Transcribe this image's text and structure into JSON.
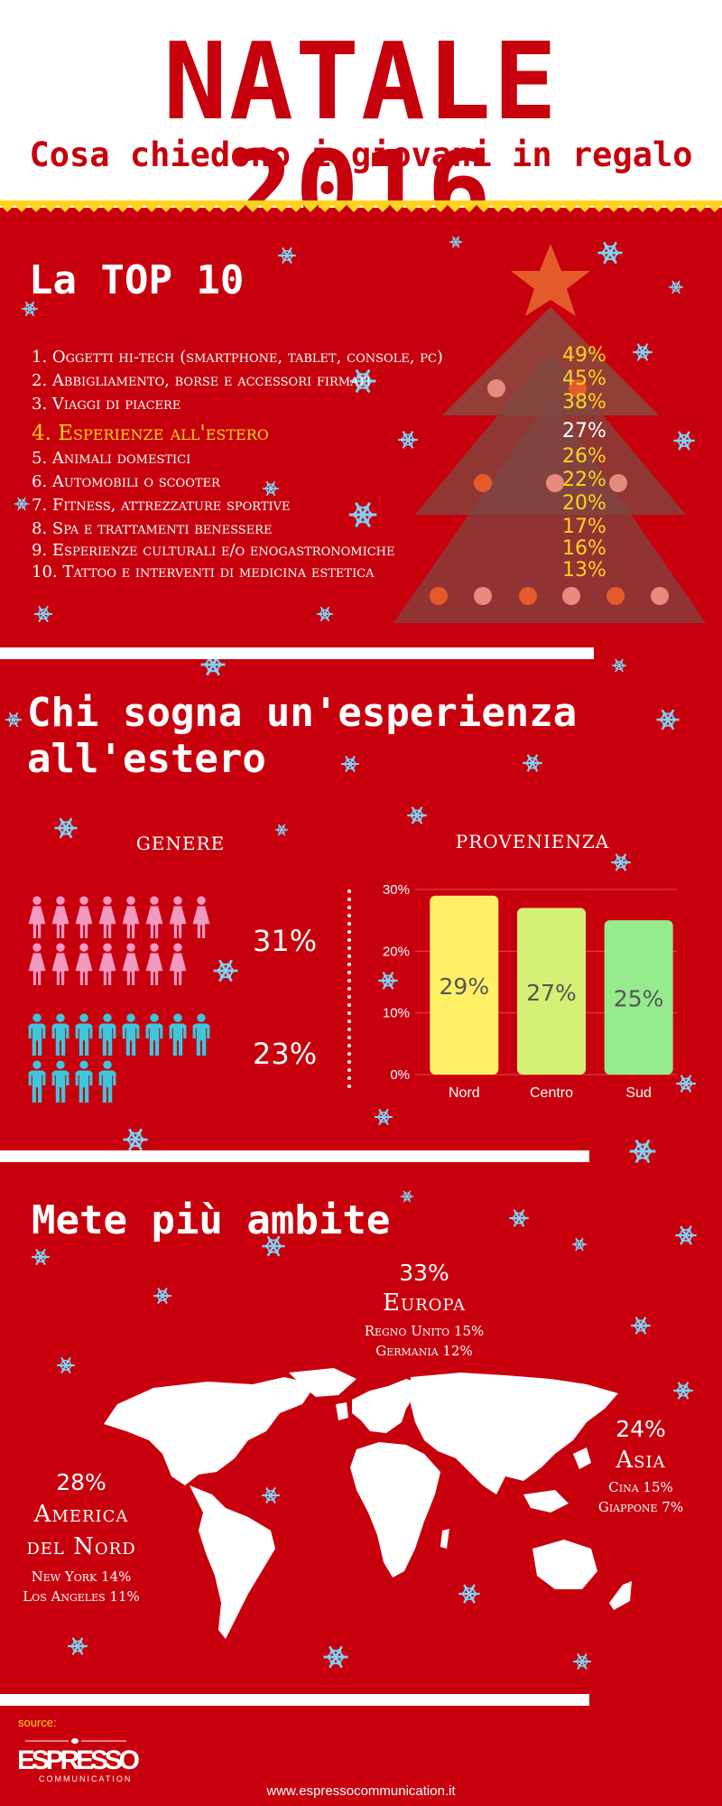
{
  "header": {
    "title": "NATALE 2016",
    "subtitle": "Cosa chiedono i giovani in regalo"
  },
  "top10": {
    "heading": "La TOP 10",
    "items": [
      {
        "label": "1. Oggetti hi-tech (smartphone, tablet, console, pc)",
        "percent": "49%"
      },
      {
        "label": "2. Abbigliamento, borse e accessori firmati",
        "percent": "45%"
      },
      {
        "label": "3. Viaggi di piacere",
        "percent": "38%"
      },
      {
        "label": "4. Esperienze all'estero",
        "percent": "27%",
        "highlight": true
      },
      {
        "label": "5. Animali domestici",
        "percent": "26%"
      },
      {
        "label": "6. Automobili o scooter",
        "percent": "22%"
      },
      {
        "label": "7. Fitness, attrezzature sportive",
        "percent": "20%"
      },
      {
        "label": "8. Spa e trattamenti benessere",
        "percent": "17%"
      },
      {
        "label": "9. Esperienze culturali e/o enogastronomiche",
        "percent": "16%"
      },
      {
        "label": "10. Tattoo e interventi di medicina estetica",
        "percent": "13%"
      }
    ]
  },
  "experience": {
    "heading_line1": "Chi sogna un'esperienza",
    "heading_line2": "all'estero",
    "gender": {
      "title": "GENERE",
      "female": {
        "percent": "31%",
        "icons": 15,
        "color": "#f49ac1"
      },
      "male": {
        "percent": "23%",
        "icons": 12,
        "color": "#3ec6dd"
      }
    },
    "provenienza": {
      "title": "PROVENIENZA"
    }
  },
  "chart_data": {
    "type": "bar",
    "categories": [
      "Nord",
      "Centro",
      "Sud"
    ],
    "values": [
      29,
      27,
      25
    ],
    "value_labels": [
      "29%",
      "27%",
      "25%"
    ],
    "colors": [
      "#fff066",
      "#d4f075",
      "#96ec8c"
    ],
    "ylim": [
      0,
      30
    ],
    "yticks": [
      0,
      10,
      20,
      30
    ],
    "ytick_labels": [
      "0%",
      "10%",
      "20%",
      "30%"
    ],
    "grid": true
  },
  "destinations": {
    "heading": "Mete più ambite",
    "europe": {
      "percent": "33%",
      "name": "Europa",
      "line1": "Regno Unito 15%",
      "line2": "Germania 12%"
    },
    "asia": {
      "percent": "24%",
      "name": "Asia",
      "line1": "Cina 15%",
      "line2": "Giappone 7%"
    },
    "america": {
      "percent": "28%",
      "name_line1": "America",
      "name_line2": "del Nord",
      "line1": "New York 14%",
      "line2": "Los Angeles 11%"
    }
  },
  "footer": {
    "source_label": "source:",
    "logo_text": "ESPRESSO",
    "logo_sub": "COMMUNICATION",
    "url": "www.espressocommunication.it"
  },
  "colors": {
    "background": "#c8000d",
    "accent_yellow": "#ffd21f",
    "white": "#ffffff"
  }
}
